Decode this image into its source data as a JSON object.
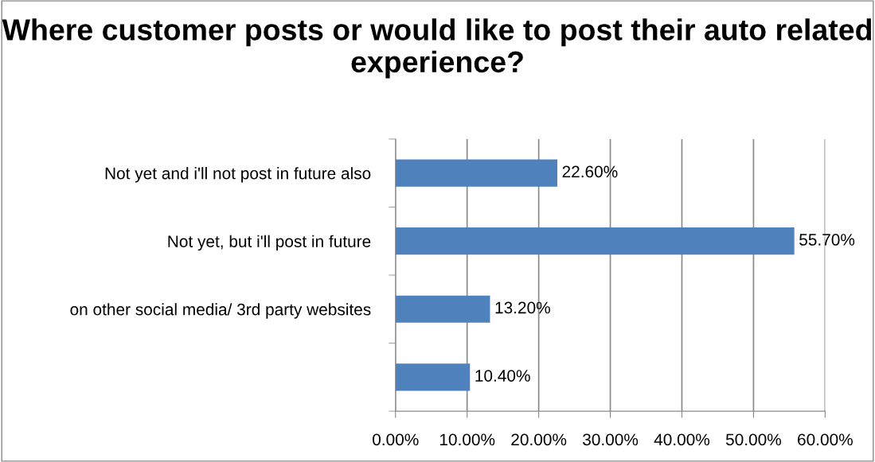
{
  "chart_data": {
    "type": "bar",
    "orientation": "horizontal",
    "title": "Where customer posts or would like to post their auto related experience?",
    "categories": [
      "Not yet and i'll not post in future also",
      "Not yet, but i'll post in future",
      "on other social media/ 3rd party websites",
      null
    ],
    "values": [
      22.6,
      55.7,
      13.2,
      10.4
    ],
    "value_labels": [
      "22.60%",
      "55.70%",
      "13.20%",
      "10.40%"
    ],
    "color": "#4f81bd",
    "xlim": [
      0,
      60
    ],
    "xticks": [
      {
        "value": 0,
        "label": "0.00%"
      },
      {
        "value": 10,
        "label": "10.00%"
      },
      {
        "value": 20,
        "label": "20.00%"
      },
      {
        "value": 30,
        "label": "30.00%"
      },
      {
        "value": 40,
        "label": "40.00%"
      },
      {
        "value": 50,
        "label": "50.00%"
      },
      {
        "value": 60,
        "label": "60.00%"
      }
    ],
    "grid": "x",
    "legend": false
  }
}
